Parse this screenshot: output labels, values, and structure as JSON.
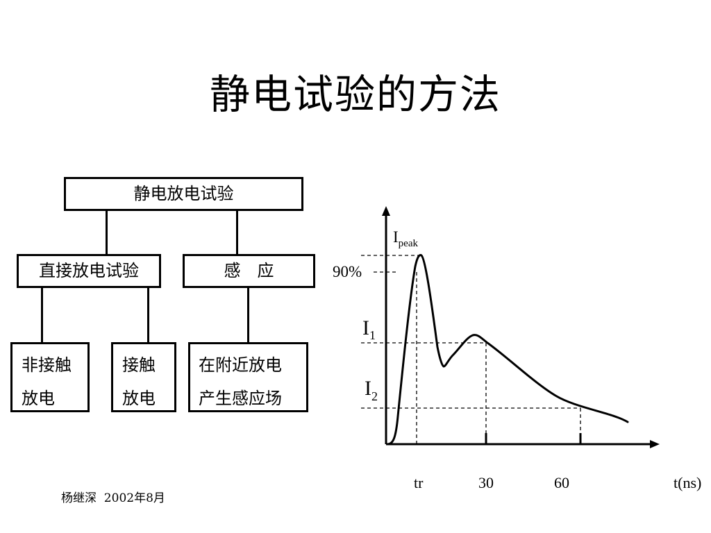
{
  "slide": {
    "title": "静电试验的方法",
    "footer": "杨继深  2002年8月"
  },
  "tree": {
    "root": "静电放电试验",
    "direct": "直接放电试验",
    "induction": "感　应",
    "non_contact": [
      "非接触",
      "放电"
    ],
    "contact": [
      "接触",
      "放电"
    ],
    "nearby": [
      "在附近放电",
      "产生感应场"
    ]
  },
  "waveform": {
    "y_labels": {
      "peak_main": "I",
      "peak_sub": "peak",
      "percent": "90%",
      "i1_main": "I",
      "i1_sub": "1",
      "i2_main": "I",
      "i2_sub": "2"
    },
    "x_labels": {
      "tr": "tr",
      "t30": "30",
      "t60": "60",
      "axis": "t(ns)"
    }
  }
}
